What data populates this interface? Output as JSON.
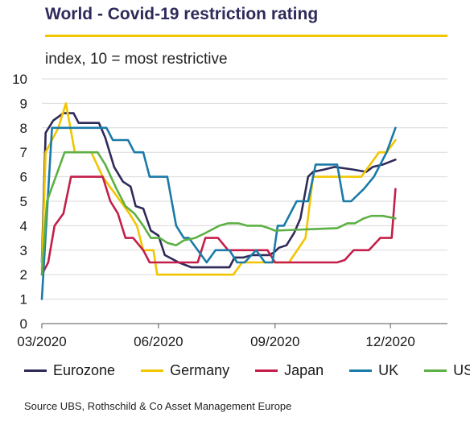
{
  "title": "World - Covid-19 restriction rating",
  "subtitle": "index, 10 = most restrictive",
  "source": "Source UBS, Rothschild & Co Asset Management Europe",
  "colors": {
    "title": "#2e2a5a",
    "accent_rule": "#f2c500",
    "grid": "#d9d9d9",
    "axis": "#555555"
  },
  "chart_data": {
    "type": "line",
    "title": "World - Covid-19 restriction rating",
    "ylabel": "index, 10 = most restrictive",
    "xlabel": "",
    "ylim": [
      0,
      10
    ],
    "yticks": [
      "0",
      "1",
      "2",
      "3",
      "4",
      "5",
      "6",
      "7",
      "8",
      "9",
      "10"
    ],
    "xlim": [
      "2020-03-01",
      "2021-01-15"
    ],
    "xticks": [
      {
        "date": "2020-03-01",
        "label": "03/2020"
      },
      {
        "date": "2020-06-01",
        "label": "06/2020"
      },
      {
        "date": "2020-09-01",
        "label": "09/2020"
      },
      {
        "date": "2020-12-01",
        "label": "12/2020"
      }
    ],
    "grid": true,
    "legend_position": "bottom",
    "series": [
      {
        "name": "Eurozone",
        "color": "#2e2a5a",
        "points": [
          [
            "2020-03-01",
            2.5
          ],
          [
            "2020-03-04",
            7.8
          ],
          [
            "2020-03-10",
            8.3
          ],
          [
            "2020-03-18",
            8.6
          ],
          [
            "2020-03-26",
            8.6
          ],
          [
            "2020-03-30",
            8.2
          ],
          [
            "2020-04-15",
            8.2
          ],
          [
            "2020-04-20",
            7.6
          ],
          [
            "2020-04-27",
            6.4
          ],
          [
            "2020-05-04",
            5.8
          ],
          [
            "2020-05-10",
            5.6
          ],
          [
            "2020-05-14",
            4.8
          ],
          [
            "2020-05-20",
            4.7
          ],
          [
            "2020-05-26",
            3.8
          ],
          [
            "2020-06-01",
            3.6
          ],
          [
            "2020-06-06",
            2.8
          ],
          [
            "2020-06-17",
            2.5
          ],
          [
            "2020-06-27",
            2.3
          ],
          [
            "2020-07-27",
            2.3
          ],
          [
            "2020-07-31",
            2.7
          ],
          [
            "2020-08-07",
            2.7
          ],
          [
            "2020-08-14",
            2.8
          ],
          [
            "2020-08-27",
            2.8
          ],
          [
            "2020-08-31",
            2.9
          ],
          [
            "2020-09-04",
            3.1
          ],
          [
            "2020-09-10",
            3.2
          ],
          [
            "2020-09-16",
            3.7
          ],
          [
            "2020-09-21",
            4.3
          ],
          [
            "2020-09-27",
            6.0
          ],
          [
            "2020-10-01",
            6.2
          ],
          [
            "2020-10-10",
            6.3
          ],
          [
            "2020-10-18",
            6.4
          ],
          [
            "2020-11-01",
            6.3
          ],
          [
            "2020-11-12",
            6.2
          ],
          [
            "2020-11-17",
            6.4
          ],
          [
            "2020-11-25",
            6.5
          ],
          [
            "2020-12-05",
            6.7
          ]
        ]
      },
      {
        "name": "Germany",
        "color": "#f2c500",
        "points": [
          [
            "2020-03-01",
            2.2
          ],
          [
            "2020-03-04",
            7.0
          ],
          [
            "2020-03-14",
            8.0
          ],
          [
            "2020-03-20",
            9.0
          ],
          [
            "2020-03-27",
            7.0
          ],
          [
            "2020-04-03",
            7.0
          ],
          [
            "2020-04-09",
            7.0
          ],
          [
            "2020-04-18",
            6.0
          ],
          [
            "2020-04-25",
            5.5
          ],
          [
            "2020-05-02",
            5.0
          ],
          [
            "2020-05-09",
            4.5
          ],
          [
            "2020-05-15",
            4.0
          ],
          [
            "2020-05-20",
            3.0
          ],
          [
            "2020-05-28",
            3.0
          ],
          [
            "2020-05-31",
            2.0
          ],
          [
            "2020-07-30",
            2.0
          ],
          [
            "2020-08-06",
            2.5
          ],
          [
            "2020-09-12",
            2.5
          ],
          [
            "2020-09-25",
            3.5
          ],
          [
            "2020-10-01",
            6.0
          ],
          [
            "2020-11-08",
            6.0
          ],
          [
            "2020-11-22",
            7.0
          ],
          [
            "2020-11-28",
            7.0
          ],
          [
            "2020-12-05",
            7.5
          ]
        ]
      },
      {
        "name": "Japan",
        "color": "#c41e4a",
        "points": [
          [
            "2020-03-01",
            2.0
          ],
          [
            "2020-03-06",
            2.5
          ],
          [
            "2020-03-11",
            4.0
          ],
          [
            "2020-03-18",
            4.5
          ],
          [
            "2020-03-24",
            6.0
          ],
          [
            "2020-04-18",
            6.0
          ],
          [
            "2020-04-24",
            5.0
          ],
          [
            "2020-04-30",
            4.5
          ],
          [
            "2020-05-06",
            3.5
          ],
          [
            "2020-05-12",
            3.5
          ],
          [
            "2020-05-20",
            3.0
          ],
          [
            "2020-05-25",
            2.5
          ],
          [
            "2020-07-02",
            2.5
          ],
          [
            "2020-07-08",
            3.5
          ],
          [
            "2020-07-18",
            3.5
          ],
          [
            "2020-07-26",
            3.0
          ],
          [
            "2020-08-26",
            3.0
          ],
          [
            "2020-09-01",
            2.5
          ],
          [
            "2020-10-20",
            2.5
          ],
          [
            "2020-10-26",
            2.6
          ],
          [
            "2020-11-02",
            3.0
          ],
          [
            "2020-11-14",
            3.0
          ],
          [
            "2020-11-23",
            3.5
          ],
          [
            "2020-12-02",
            3.5
          ],
          [
            "2020-12-05",
            5.5
          ]
        ]
      },
      {
        "name": "UK",
        "color": "#1a7aa8",
        "points": [
          [
            "2020-03-01",
            1.0
          ],
          [
            "2020-03-09",
            8.0
          ],
          [
            "2020-04-21",
            8.0
          ],
          [
            "2020-04-26",
            7.5
          ],
          [
            "2020-05-08",
            7.5
          ],
          [
            "2020-05-13",
            7.0
          ],
          [
            "2020-05-20",
            7.0
          ],
          [
            "2020-05-25",
            6.0
          ],
          [
            "2020-06-08",
            6.0
          ],
          [
            "2020-06-15",
            4.0
          ],
          [
            "2020-06-21",
            3.5
          ],
          [
            "2020-06-25",
            3.5
          ],
          [
            "2020-07-02",
            3.0
          ],
          [
            "2020-07-09",
            2.5
          ],
          [
            "2020-07-16",
            3.0
          ],
          [
            "2020-07-27",
            3.0
          ],
          [
            "2020-08-02",
            2.5
          ],
          [
            "2020-08-08",
            2.5
          ],
          [
            "2020-08-17",
            3.0
          ],
          [
            "2020-08-24",
            2.5
          ],
          [
            "2020-08-30",
            2.5
          ],
          [
            "2020-09-03",
            4.0
          ],
          [
            "2020-09-08",
            4.0
          ],
          [
            "2020-09-18",
            5.0
          ],
          [
            "2020-09-27",
            5.0
          ],
          [
            "2020-10-03",
            6.5
          ],
          [
            "2020-10-20",
            6.5
          ],
          [
            "2020-10-25",
            5.0
          ],
          [
            "2020-10-31",
            5.0
          ],
          [
            "2020-11-10",
            5.5
          ],
          [
            "2020-11-18",
            6.0
          ],
          [
            "2020-11-28",
            7.0
          ],
          [
            "2020-12-05",
            8.0
          ]
        ]
      },
      {
        "name": "US",
        "color": "#5db043",
        "points": [
          [
            "2020-03-01",
            2.0
          ],
          [
            "2020-03-05",
            5.0
          ],
          [
            "2020-03-12",
            6.0
          ],
          [
            "2020-03-19",
            7.0
          ],
          [
            "2020-04-14",
            7.0
          ],
          [
            "2020-04-20",
            6.5
          ],
          [
            "2020-04-29",
            5.5
          ],
          [
            "2020-05-06",
            4.8
          ],
          [
            "2020-05-13",
            4.5
          ],
          [
            "2020-05-20",
            4.0
          ],
          [
            "2020-05-26",
            3.5
          ],
          [
            "2020-06-02",
            3.5
          ],
          [
            "2020-06-08",
            3.3
          ],
          [
            "2020-06-15",
            3.2
          ],
          [
            "2020-06-21",
            3.4
          ],
          [
            "2020-06-30",
            3.5
          ],
          [
            "2020-07-08",
            3.7
          ],
          [
            "2020-07-19",
            4.0
          ],
          [
            "2020-07-26",
            4.1
          ],
          [
            "2020-08-03",
            4.1
          ],
          [
            "2020-08-10",
            4.0
          ],
          [
            "2020-08-21",
            4.0
          ],
          [
            "2020-08-27",
            3.9
          ],
          [
            "2020-09-01",
            3.8
          ],
          [
            "2020-10-20",
            3.9
          ],
          [
            "2020-10-28",
            4.1
          ],
          [
            "2020-11-03",
            4.1
          ],
          [
            "2020-11-10",
            4.3
          ],
          [
            "2020-11-16",
            4.4
          ],
          [
            "2020-11-25",
            4.4
          ],
          [
            "2020-12-05",
            4.3
          ]
        ]
      }
    ]
  }
}
